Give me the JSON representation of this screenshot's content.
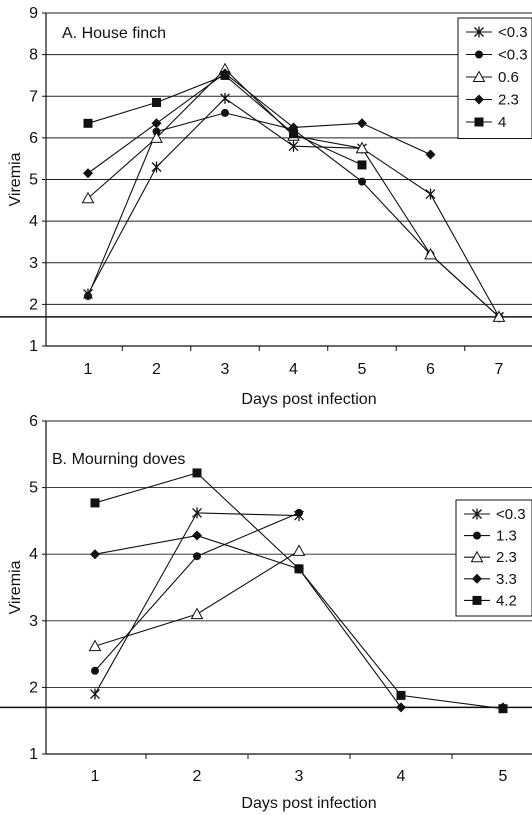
{
  "chart_data": [
    {
      "type": "line",
      "title": "A. House finch",
      "xlabel": "Days post infection",
      "ylabel": "Viremia",
      "x": [
        1,
        2,
        3,
        4,
        5,
        6,
        7
      ],
      "ylim": [
        1,
        9
      ],
      "yticks": [
        1,
        2,
        3,
        4,
        5,
        6,
        7,
        8,
        9
      ],
      "reference_line": 1.7,
      "grid": "horizontal",
      "legend_position": "top-right",
      "series": [
        {
          "name": "<0.3",
          "marker": "star",
          "values": [
            2.25,
            5.3,
            6.95,
            5.8,
            5.75,
            4.65,
            1.7
          ]
        },
        {
          "name": "<0.3",
          "marker": "circle",
          "values": [
            2.2,
            6.15,
            6.6,
            6.2,
            4.95,
            3.2,
            1.7
          ]
        },
        {
          "name": "0.6",
          "marker": "triangle-open",
          "values": [
            4.55,
            6.0,
            7.65,
            6.05,
            5.75,
            3.2,
            1.7
          ]
        },
        {
          "name": "2.3",
          "marker": "diamond",
          "values": [
            5.15,
            6.35,
            7.55,
            6.25,
            6.35,
            5.6,
            null
          ]
        },
        {
          "name": "4",
          "marker": "square",
          "values": [
            6.35,
            6.85,
            7.5,
            6.1,
            5.35,
            null,
            null
          ]
        }
      ]
    },
    {
      "type": "line",
      "title": "B. Mourning doves",
      "xlabel": "Days post infection",
      "ylabel": "Viremia",
      "x": [
        1,
        2,
        3,
        4,
        5
      ],
      "ylim": [
        1,
        6
      ],
      "yticks": [
        1,
        2,
        3,
        4,
        5,
        6
      ],
      "reference_line": 1.7,
      "grid": "horizontal",
      "legend_position": "top-right",
      "series": [
        {
          "name": "<0.3",
          "marker": "star",
          "values": [
            1.9,
            4.62,
            4.58,
            null,
            null
          ]
        },
        {
          "name": "1.3",
          "marker": "circle",
          "values": [
            2.25,
            3.97,
            4.62,
            null,
            null
          ]
        },
        {
          "name": "2.3",
          "marker": "triangle-open",
          "values": [
            2.62,
            3.1,
            4.05,
            null,
            null
          ]
        },
        {
          "name": "3.3",
          "marker": "diamond",
          "values": [
            4.0,
            4.28,
            3.78,
            1.7,
            1.7
          ]
        },
        {
          "name": "4.2",
          "marker": "square",
          "values": [
            4.77,
            5.22,
            3.78,
            1.88,
            1.68
          ]
        }
      ]
    }
  ]
}
